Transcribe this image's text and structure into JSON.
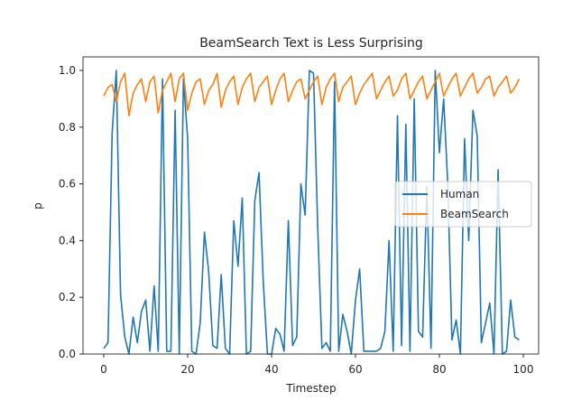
{
  "chart_data": {
    "type": "line",
    "title": "BeamSearch Text is Less Surprising",
    "xlabel": "Timestep",
    "ylabel": "p",
    "xlim": [
      -5,
      104
    ],
    "ylim": [
      0.0,
      1.05
    ],
    "xticks": [
      0,
      20,
      40,
      60,
      80,
      100
    ],
    "xtick_labels": [
      "0",
      "20",
      "40",
      "60",
      "80",
      "100"
    ],
    "yticks": [
      0.0,
      0.2,
      0.4,
      0.6,
      0.8,
      1.0
    ],
    "ytick_labels": [
      "0.0",
      "0.2",
      "0.4",
      "0.6",
      "0.8",
      "1.0"
    ],
    "grid": false,
    "legend_position": "center right",
    "x": [
      0,
      1,
      2,
      3,
      4,
      5,
      6,
      7,
      8,
      9,
      10,
      11,
      12,
      13,
      14,
      15,
      16,
      17,
      18,
      19,
      20,
      21,
      22,
      23,
      24,
      25,
      26,
      27,
      28,
      29,
      30,
      31,
      32,
      33,
      34,
      35,
      36,
      37,
      38,
      39,
      40,
      41,
      42,
      43,
      44,
      45,
      46,
      47,
      48,
      49,
      50,
      51,
      52,
      53,
      54,
      55,
      56,
      57,
      58,
      59,
      60,
      61,
      62,
      63,
      64,
      65,
      66,
      67,
      68,
      69,
      70,
      71,
      72,
      73,
      74,
      75,
      76,
      77,
      78,
      79,
      80,
      81,
      82,
      83,
      84,
      85,
      86,
      87,
      88,
      89,
      90,
      91,
      92,
      93,
      94,
      95,
      96,
      97,
      98,
      99
    ],
    "series": [
      {
        "name": "Human",
        "color": "#1f77b4",
        "values": [
          0.02,
          0.04,
          0.78,
          1.0,
          0.21,
          0.06,
          0.0,
          0.13,
          0.04,
          0.15,
          0.19,
          0.01,
          0.24,
          0.01,
          0.97,
          0.01,
          0.01,
          0.86,
          0.0,
          0.97,
          0.76,
          0.01,
          0.0,
          0.11,
          0.43,
          0.29,
          0.03,
          0.02,
          0.28,
          0.02,
          0.0,
          0.47,
          0.31,
          0.55,
          0.0,
          0.01,
          0.54,
          0.64,
          0.26,
          0.0,
          0.0,
          0.09,
          0.07,
          0.01,
          0.47,
          0.03,
          0.06,
          0.6,
          0.49,
          1.0,
          0.99,
          0.45,
          0.02,
          0.04,
          0.01,
          0.96,
          0.01,
          0.14,
          0.08,
          0.0,
          0.19,
          0.3,
          0.01,
          0.01,
          0.01,
          0.01,
          0.02,
          0.08,
          0.4,
          0.01,
          0.84,
          0.03,
          0.81,
          0.01,
          0.9,
          0.08,
          0.06,
          0.59,
          0.02,
          1.0,
          0.71,
          0.9,
          0.6,
          0.05,
          0.12,
          0.0,
          0.76,
          0.4,
          0.86,
          0.77,
          0.04,
          0.11,
          0.18,
          0.0,
          0.65,
          0.0,
          0.01,
          0.19,
          0.06,
          0.05
        ]
      },
      {
        "name": "BeamSearch",
        "color": "#ff7f0e",
        "values": [
          0.91,
          0.94,
          0.95,
          0.89,
          0.96,
          0.99,
          0.84,
          0.92,
          0.95,
          0.97,
          0.89,
          0.96,
          0.98,
          0.85,
          0.93,
          0.96,
          0.99,
          0.89,
          0.97,
          0.99,
          0.86,
          0.92,
          0.96,
          0.97,
          0.88,
          0.93,
          0.95,
          0.99,
          0.87,
          0.93,
          0.96,
          0.98,
          0.88,
          0.94,
          0.97,
          0.99,
          0.89,
          0.94,
          0.96,
          0.98,
          0.88,
          0.93,
          0.97,
          0.99,
          0.89,
          0.93,
          0.96,
          0.97,
          0.9,
          0.93,
          0.96,
          0.98,
          0.88,
          0.94,
          0.97,
          0.99,
          0.89,
          0.94,
          0.96,
          0.98,
          0.88,
          0.92,
          0.95,
          0.97,
          0.99,
          0.9,
          0.93,
          0.96,
          0.98,
          0.91,
          0.93,
          0.97,
          0.99,
          0.9,
          0.93,
          0.96,
          0.98,
          0.9,
          0.93,
          0.96,
          0.99,
          0.91,
          0.94,
          0.97,
          0.99,
          0.91,
          0.94,
          0.97,
          0.99,
          0.92,
          0.94,
          0.97,
          0.98,
          0.91,
          0.94,
          0.96,
          0.98,
          0.92,
          0.94,
          0.97
        ]
      }
    ]
  },
  "legend": {
    "items": [
      {
        "label": "Human",
        "color": "#1f77b4"
      },
      {
        "label": "BeamSearch",
        "color": "#ff7f0e"
      }
    ]
  }
}
